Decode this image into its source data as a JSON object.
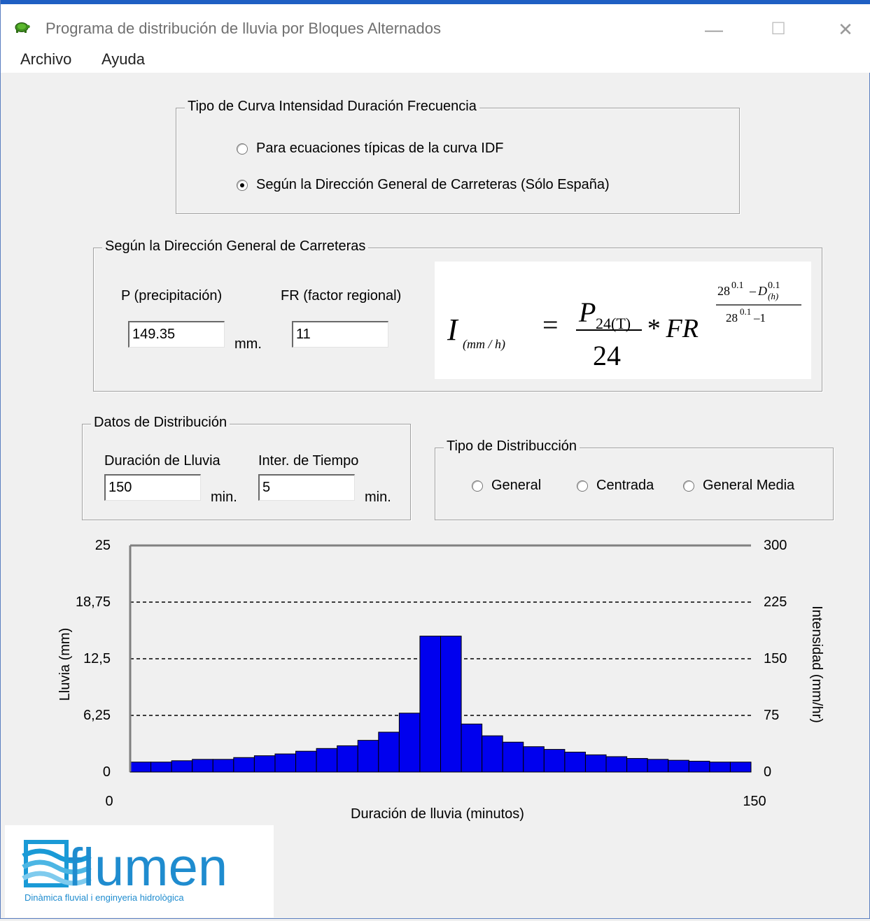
{
  "window": {
    "title": "Programa de distribución de lluvia por Bloques Alternados",
    "controls": {
      "minimize": "—",
      "maximize": "☐",
      "close": "✕"
    }
  },
  "menu": {
    "items": [
      "Archivo",
      "Ayuda"
    ]
  },
  "curve_type": {
    "label": "Tipo de Curva Intensidad Duración Frecuencia",
    "options": [
      {
        "label": "Para ecuaciones típicas de la curva IDF",
        "selected": false
      },
      {
        "label": "Según la Dirección General de Carreteras (Sólo España)",
        "selected": true
      }
    ]
  },
  "dgc": {
    "label": "Según la Dirección General de Carreteras",
    "p_label": "P (precipitación)",
    "p_value": "149.35",
    "p_unit": "mm.",
    "fr_label": "FR (factor regional)",
    "fr_value": "11"
  },
  "formula": {
    "lhs": "I",
    "lhs_sub": "(mm / h)",
    "num": "P",
    "num_sub": "24(T)",
    "den": "24",
    "mult": "* FR",
    "exp_num_a": "28",
    "exp_num_a_sup": "0.1",
    "exp_num_b": "D",
    "exp_num_b_sup": "0.1",
    "exp_num_b_sub": "(h)",
    "exp_den": "28",
    "exp_den_sup": "0.1",
    "exp_den_tail": "–1"
  },
  "distribution_data": {
    "label": "Datos de Distribución",
    "duration_label": "Duración de Lluvia",
    "duration_value": "150",
    "duration_unit": "min.",
    "interval_label": "Inter. de Tiempo",
    "interval_value": "5",
    "interval_unit": "min."
  },
  "distribution_type": {
    "label": "Tipo de Distribucción",
    "options": [
      {
        "label": "General",
        "selected": false
      },
      {
        "label": "Centrada",
        "selected": false
      },
      {
        "label": "General Media",
        "selected": false
      }
    ]
  },
  "chart_data": {
    "type": "bar",
    "xlabel": "Duración de lluvia (minutos)",
    "ylabel_left": "Lluvia (mm)",
    "ylabel_right": "Intensidad (mm/hr)",
    "xlim": [
      0,
      150
    ],
    "x_ticks": [
      "0",
      "150"
    ],
    "ylim_left": [
      0,
      25
    ],
    "ylim_right": [
      0,
      300
    ],
    "left_ticks": [
      "0",
      "6,25",
      "12,5",
      "18,75",
      "25"
    ],
    "right_ticks": [
      "0",
      "75",
      "150",
      "225",
      "300"
    ],
    "grid": "dashed horizontal",
    "bar_color": "#0000ee",
    "interval_minutes": 5,
    "values": [
      1.1,
      1.1,
      1.25,
      1.4,
      1.4,
      1.6,
      1.8,
      2.0,
      2.3,
      2.6,
      2.9,
      3.5,
      4.4,
      6.5,
      15.0,
      15.0,
      5.3,
      4.0,
      3.3,
      2.8,
      2.5,
      2.2,
      1.9,
      1.7,
      1.5,
      1.4,
      1.3,
      1.2,
      1.1,
      1.1
    ]
  },
  "logo": {
    "name": "flumen",
    "tagline": "Dinàmica fluvial i enginyeria hidrològica"
  }
}
